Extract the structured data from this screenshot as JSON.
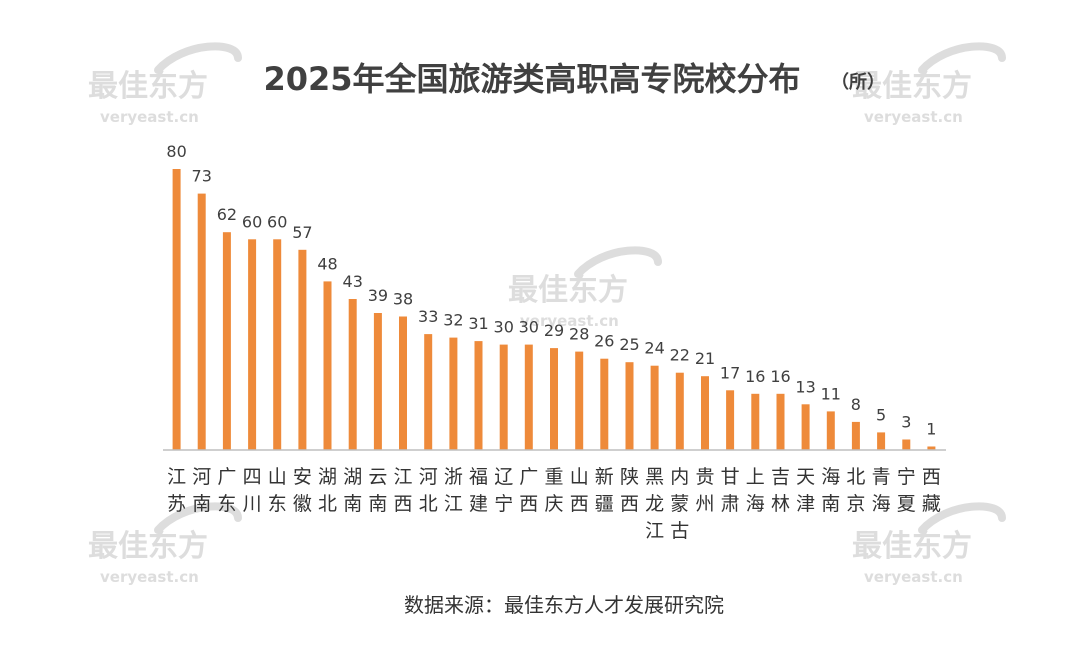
{
  "chart_data": {
    "type": "bar",
    "title": "2025年全国旅游类高职高专院校分布",
    "unit": "（所）",
    "source": "数据来源：最佳东方人才发展研究院",
    "categories": [
      "江苏",
      "河南",
      "广东",
      "四川",
      "山东",
      "安徽",
      "湖北",
      "湖南",
      "云南",
      "江西",
      "河北",
      "浙江",
      "福建",
      "辽宁",
      "广西",
      "重庆",
      "山西",
      "新疆",
      "陕西",
      "黑龙江",
      "内蒙古",
      "贵州",
      "甘肃",
      "上海",
      "吉林",
      "天津",
      "海南",
      "北京",
      "青海",
      "宁夏",
      "西藏"
    ],
    "values": [
      80,
      73,
      62,
      60,
      60,
      57,
      48,
      43,
      39,
      38,
      33,
      32,
      31,
      30,
      30,
      29,
      28,
      26,
      25,
      24,
      22,
      21,
      17,
      16,
      16,
      13,
      11,
      8,
      5,
      3,
      1
    ],
    "ylim": [
      0,
      80
    ],
    "grid": false,
    "legend": "none",
    "bar_color": "#EE8A3A",
    "axis_color": "#BFBFBF"
  },
  "watermark": {
    "brand": "最佳东方",
    "domain": "veryeast.cn",
    "color": "#DDDDDD"
  }
}
